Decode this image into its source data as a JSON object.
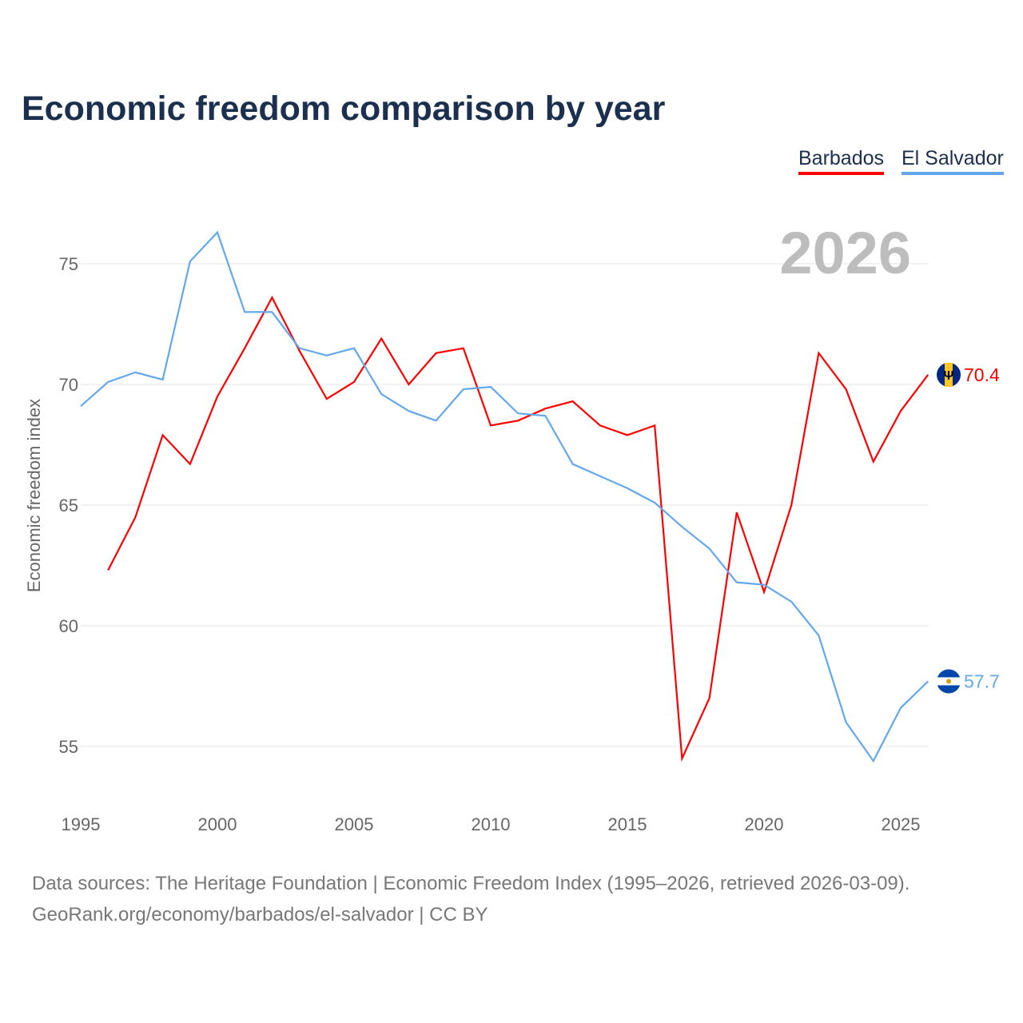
{
  "chart_data": {
    "type": "line",
    "title": "Economic freedom comparison by year",
    "xlabel": "",
    "ylabel": "Economic freedom index",
    "xlim": [
      1995,
      2026
    ],
    "ylim": [
      53,
      77
    ],
    "x_ticks": [
      1995,
      2000,
      2005,
      2010,
      2015,
      2020,
      2025
    ],
    "y_ticks": [
      55,
      60,
      65,
      70,
      75
    ],
    "grid": true,
    "legend_position": "top-right",
    "year_watermark": "2026",
    "series": [
      {
        "name": "Barbados",
        "color": "#ff0000",
        "end_label": "70.4",
        "x": [
          1996,
          1997,
          1998,
          1999,
          2000,
          2001,
          2002,
          2003,
          2004,
          2005,
          2006,
          2007,
          2008,
          2009,
          2010,
          2011,
          2012,
          2013,
          2014,
          2015,
          2016,
          2017,
          2018,
          2019,
          2020,
          2021,
          2022,
          2023,
          2024,
          2025,
          2026
        ],
        "values": [
          62.3,
          64.5,
          67.9,
          66.7,
          69.5,
          71.5,
          73.6,
          71.4,
          69.4,
          70.1,
          71.9,
          70.0,
          71.3,
          71.5,
          68.3,
          68.5,
          69.0,
          69.3,
          68.3,
          67.9,
          68.3,
          54.5,
          57.0,
          64.7,
          61.4,
          65.0,
          71.3,
          69.8,
          66.8,
          68.9,
          70.4
        ]
      },
      {
        "name": "El Salvador",
        "color": "#63a7ec",
        "end_label": "57.7",
        "x": [
          1995,
          1996,
          1997,
          1998,
          1999,
          2000,
          2001,
          2002,
          2003,
          2004,
          2005,
          2006,
          2007,
          2008,
          2009,
          2010,
          2011,
          2012,
          2013,
          2014,
          2015,
          2016,
          2017,
          2018,
          2019,
          2020,
          2021,
          2022,
          2023,
          2024,
          2025,
          2026
        ],
        "values": [
          69.1,
          70.1,
          70.5,
          70.2,
          75.1,
          76.3,
          73.0,
          73.0,
          71.5,
          71.2,
          71.5,
          69.6,
          68.9,
          68.5,
          69.8,
          69.9,
          68.8,
          68.7,
          66.7,
          66.2,
          65.7,
          65.1,
          64.1,
          63.2,
          61.8,
          61.7,
          61.0,
          59.6,
          56.0,
          54.4,
          56.6,
          57.7
        ]
      }
    ]
  },
  "footer": {
    "line1": "Data sources: The Heritage Foundation | Economic Freedom Index (1995–2026, retrieved 2026-03-09).",
    "line2": "GeoRank.org/economy/barbados/el-salvador | CC BY"
  }
}
